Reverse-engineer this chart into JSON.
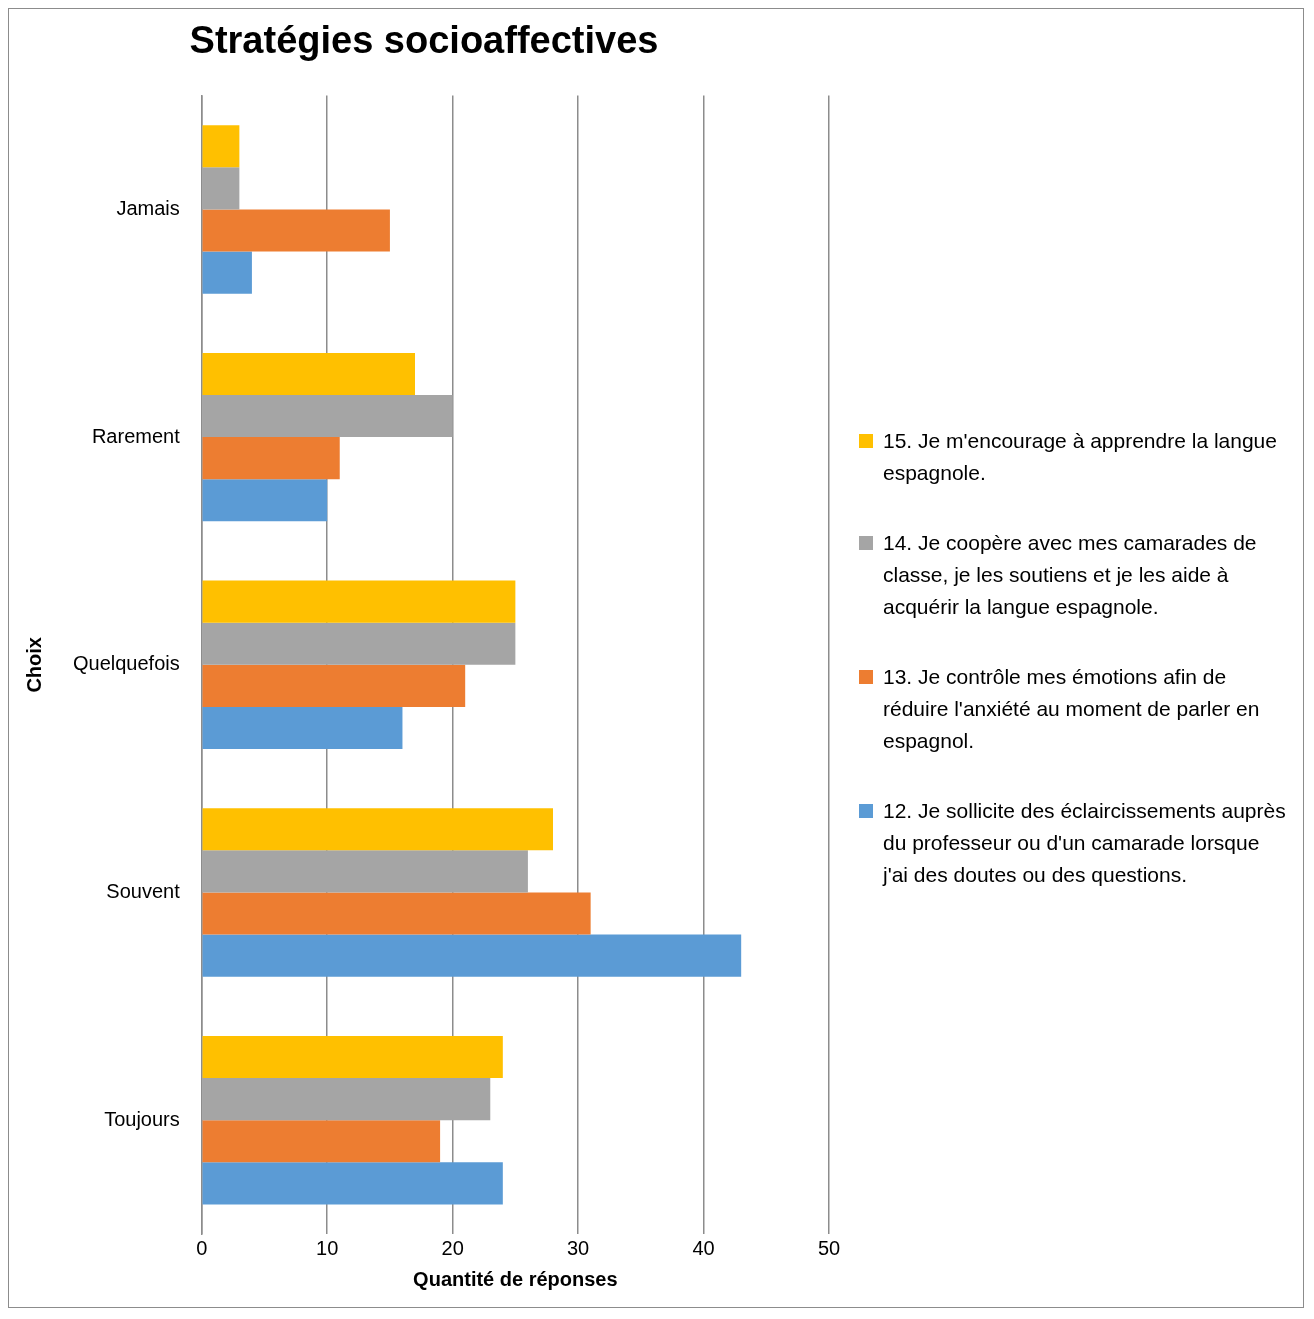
{
  "chart_data": {
    "type": "bar",
    "orientation": "horizontal",
    "title": "Stratégies socioaffectives",
    "xlabel": "Quantité de réponses",
    "ylabel": "Choix",
    "categories": [
      "Jamais",
      "Rarement",
      "Quelquefois",
      "Souvent",
      "Toujours"
    ],
    "series": [
      {
        "name": "15. Je m'encourage à apprendre la langue espagnole.",
        "color": "#ffc000",
        "values": [
          3,
          17,
          25,
          28,
          24
        ]
      },
      {
        "name": "14. Je coopère avec mes camarades de classe, je les soutiens et je les aide à acquérir la langue espagnole.",
        "color": "#a5a5a5",
        "values": [
          3,
          20,
          25,
          26,
          23
        ]
      },
      {
        "name": "13. Je contrôle mes émotions afin de réduire l'anxiété au moment de parler en espagnol.",
        "color": "#ed7d31",
        "values": [
          15,
          11,
          21,
          31,
          19
        ]
      },
      {
        "name": "12. Je sollicite des éclaircissements auprès du professeur ou d'un camarade lorsque j'ai des doutes ou des questions.",
        "color": "#5b9bd5",
        "values": [
          4,
          10,
          16,
          43,
          24
        ]
      }
    ],
    "xlim": [
      0,
      50
    ],
    "xticks": [
      0,
      10,
      20,
      30,
      40,
      50
    ],
    "grid": "x",
    "legend": "right"
  }
}
